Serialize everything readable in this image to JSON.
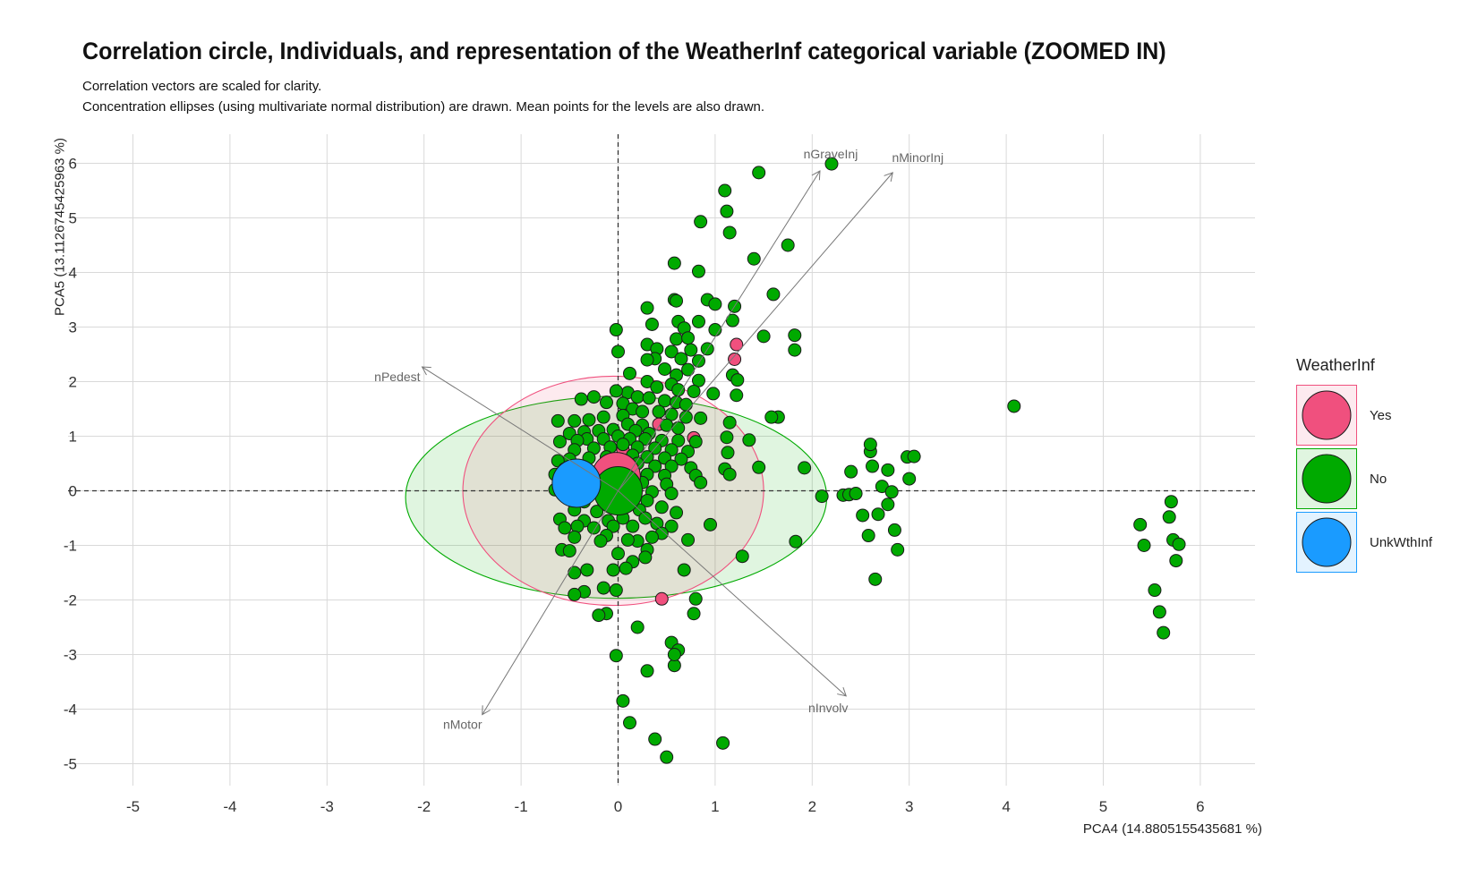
{
  "title": "Correlation circle, Individuals, and representation of the WeatherInf categorical variable (ZOOMED IN)",
  "subtitle_lines": [
    "Correlation vectors are scaled for clarity.",
    "Concentration ellipses (using multivariate normal distribution) are drawn. Mean points for the levels are also drawn."
  ],
  "chart_data": {
    "type": "scatter",
    "xlabel": "PCA4 (14.8805155435681 %)",
    "ylabel": "PCA5 (13.1126745425963 %)",
    "xlim": [
      -5.5,
      6.6
    ],
    "ylim": [
      -5.5,
      6.6
    ],
    "x_ticks": [
      -5,
      -4,
      -3,
      -2,
      -1,
      0,
      1,
      2,
      3,
      4,
      5,
      6
    ],
    "y_ticks": [
      -5,
      -4,
      -3,
      -2,
      -1,
      0,
      1,
      2,
      3,
      4,
      5,
      6
    ],
    "grid": true,
    "reference_lines": [
      "x = 0 (dashed)",
      "y = 0 (dashed)"
    ],
    "legend": {
      "title": "WeatherInf",
      "placement": "right",
      "entries": [
        {
          "label": "Yes",
          "color": "#f0507e"
        },
        {
          "label": "No",
          "color": "#00aa00"
        },
        {
          "label": "UnkWthInf",
          "color": "#1a9bff"
        }
      ]
    },
    "vectors": [
      {
        "label": "nGraveInj",
        "x": 2.08,
        "y": 5.86
      },
      {
        "label": "nMinorInj",
        "x": 2.83,
        "y": 5.83
      },
      {
        "label": "nPedest",
        "x": -2.02,
        "y": 2.27
      },
      {
        "label": "nInvolv",
        "x": 2.35,
        "y": -3.76
      },
      {
        "label": "nMotor",
        "x": -1.4,
        "y": -4.1
      }
    ],
    "ellipses": [
      {
        "level": "Yes",
        "cx": -0.05,
        "cy": 0.0,
        "rx": 1.55,
        "ry": 2.1,
        "color": "#f0507e"
      },
      {
        "level": "No",
        "cx": -0.02,
        "cy": -0.12,
        "rx": 2.17,
        "ry": 1.85,
        "color": "#00aa00"
      }
    ],
    "mean_points": [
      {
        "level": "Yes",
        "x": -0.02,
        "y": 0.26
      },
      {
        "level": "No",
        "x": 0.0,
        "y": 0.0
      },
      {
        "level": "UnkWthInf",
        "x": -0.43,
        "y": 0.14
      }
    ],
    "series": [
      {
        "name": "Yes",
        "color": "#f0507e",
        "points": [
          [
            1.22,
            2.68
          ],
          [
            1.2,
            2.41
          ],
          [
            0.42,
            1.22
          ],
          [
            0.78,
            0.97
          ],
          [
            0.45,
            -1.98
          ],
          [
            0.05,
            0.75
          ]
        ]
      },
      {
        "name": "No",
        "color": "#00aa00",
        "points": [
          [
            1.45,
            5.83
          ],
          [
            2.2,
            5.99
          ],
          [
            1.1,
            5.5
          ],
          [
            1.12,
            5.12
          ],
          [
            1.15,
            4.73
          ],
          [
            0.85,
            4.93
          ],
          [
            1.75,
            4.5
          ],
          [
            1.4,
            4.25
          ],
          [
            0.58,
            4.17
          ],
          [
            0.83,
            4.02
          ],
          [
            1.6,
            3.6
          ],
          [
            0.58,
            3.5
          ],
          [
            0.6,
            3.48
          ],
          [
            0.92,
            3.5
          ],
          [
            1.0,
            3.42
          ],
          [
            1.2,
            3.38
          ],
          [
            0.3,
            3.35
          ],
          [
            0.62,
            3.1
          ],
          [
            0.83,
            3.1
          ],
          [
            1.18,
            3.12
          ],
          [
            1.0,
            2.95
          ],
          [
            -0.02,
            2.95
          ],
          [
            0.68,
            2.98
          ],
          [
            1.82,
            2.85
          ],
          [
            1.5,
            2.83
          ],
          [
            0.6,
            2.78
          ],
          [
            0.72,
            2.8
          ],
          [
            0.3,
            2.68
          ],
          [
            0.4,
            2.6
          ],
          [
            0.55,
            2.55
          ],
          [
            0.75,
            2.58
          ],
          [
            0.92,
            2.6
          ],
          [
            1.82,
            2.58
          ],
          [
            0.0,
            2.55
          ],
          [
            0.38,
            2.42
          ],
          [
            0.65,
            2.42
          ],
          [
            0.3,
            2.4
          ],
          [
            0.83,
            2.38
          ],
          [
            0.12,
            2.15
          ],
          [
            0.48,
            2.23
          ],
          [
            0.72,
            2.22
          ],
          [
            0.6,
            2.12
          ],
          [
            1.18,
            2.12
          ],
          [
            1.23,
            2.03
          ],
          [
            0.83,
            2.02
          ],
          [
            0.3,
            2.0
          ],
          [
            0.4,
            1.9
          ],
          [
            0.55,
            1.95
          ],
          [
            0.62,
            1.85
          ],
          [
            0.78,
            1.82
          ],
          [
            0.98,
            1.78
          ],
          [
            1.22,
            1.75
          ],
          [
            0.1,
            1.8
          ],
          [
            -0.02,
            1.83
          ],
          [
            0.2,
            1.72
          ],
          [
            0.32,
            1.7
          ],
          [
            0.48,
            1.65
          ],
          [
            0.6,
            1.62
          ],
          [
            0.7,
            1.58
          ],
          [
            -0.12,
            1.62
          ],
          [
            -0.38,
            1.68
          ],
          [
            -0.25,
            1.72
          ],
          [
            0.05,
            1.6
          ],
          [
            0.15,
            1.5
          ],
          [
            0.25,
            1.45
          ],
          [
            0.42,
            1.45
          ],
          [
            0.55,
            1.4
          ],
          [
            0.7,
            1.35
          ],
          [
            0.85,
            1.33
          ],
          [
            1.65,
            1.35
          ],
          [
            0.05,
            1.38
          ],
          [
            -0.15,
            1.35
          ],
          [
            -0.3,
            1.3
          ],
          [
            -0.45,
            1.28
          ],
          [
            -0.62,
            1.28
          ],
          [
            0.1,
            1.22
          ],
          [
            0.25,
            1.2
          ],
          [
            0.5,
            1.2
          ],
          [
            0.62,
            1.15
          ],
          [
            0.18,
            1.1
          ],
          [
            0.32,
            1.05
          ],
          [
            1.15,
            1.25
          ],
          [
            -0.05,
            1.12
          ],
          [
            -0.2,
            1.1
          ],
          [
            -0.35,
            1.08
          ],
          [
            -0.5,
            1.05
          ],
          [
            0.0,
            1.0
          ],
          [
            0.12,
            0.95
          ],
          [
            0.28,
            0.95
          ],
          [
            0.45,
            0.92
          ],
          [
            0.62,
            0.92
          ],
          [
            0.8,
            0.9
          ],
          [
            -0.15,
            0.95
          ],
          [
            -0.32,
            0.95
          ],
          [
            -0.42,
            0.92
          ],
          [
            -0.6,
            0.9
          ],
          [
            1.12,
            0.98
          ],
          [
            1.35,
            0.93
          ],
          [
            1.13,
            0.7
          ],
          [
            0.05,
            0.85
          ],
          [
            0.2,
            0.8
          ],
          [
            0.38,
            0.78
          ],
          [
            0.55,
            0.75
          ],
          [
            0.72,
            0.72
          ],
          [
            -0.08,
            0.8
          ],
          [
            -0.25,
            0.78
          ],
          [
            -0.45,
            0.75
          ],
          [
            0.15,
            0.65
          ],
          [
            0.3,
            0.62
          ],
          [
            0.48,
            0.6
          ],
          [
            0.65,
            0.58
          ],
          [
            -0.12,
            0.62
          ],
          [
            -0.3,
            0.6
          ],
          [
            -0.5,
            0.58
          ],
          [
            -0.62,
            0.55
          ],
          [
            0.0,
            0.5
          ],
          [
            0.2,
            0.5
          ],
          [
            0.38,
            0.45
          ],
          [
            0.55,
            0.45
          ],
          [
            0.75,
            0.42
          ],
          [
            1.1,
            0.4
          ],
          [
            1.45,
            0.43
          ],
          [
            -0.15,
            0.45
          ],
          [
            -0.35,
            0.42
          ],
          [
            -0.55,
            0.4
          ],
          [
            -0.65,
            0.3
          ],
          [
            0.1,
            0.32
          ],
          [
            0.3,
            0.3
          ],
          [
            0.48,
            0.28
          ],
          [
            0.8,
            0.28
          ],
          [
            1.15,
            0.3
          ],
          [
            -0.2,
            0.28
          ],
          [
            -0.42,
            0.25
          ],
          [
            0.05,
            0.15
          ],
          [
            0.25,
            0.15
          ],
          [
            0.5,
            0.12
          ],
          [
            0.85,
            0.15
          ],
          [
            -0.1,
            0.12
          ],
          [
            -0.32,
            0.1
          ],
          [
            -0.55,
            0.12
          ],
          [
            0.15,
            0.0
          ],
          [
            0.35,
            -0.02
          ],
          [
            0.55,
            -0.05
          ],
          [
            -0.05,
            -0.02
          ],
          [
            -0.28,
            -0.05
          ],
          [
            -0.48,
            -0.02
          ],
          [
            -0.65,
            0.02
          ],
          [
            0.1,
            -0.15
          ],
          [
            0.3,
            -0.18
          ],
          [
            -0.15,
            -0.2
          ],
          [
            -0.35,
            -0.2
          ],
          [
            0.0,
            -0.32
          ],
          [
            0.22,
            -0.35
          ],
          [
            0.45,
            -0.3
          ],
          [
            0.6,
            -0.4
          ],
          [
            -0.22,
            -0.38
          ],
          [
            -0.45,
            -0.35
          ],
          [
            0.05,
            -0.5
          ],
          [
            0.28,
            -0.5
          ],
          [
            0.4,
            -0.6
          ],
          [
            -0.1,
            -0.55
          ],
          [
            -0.35,
            -0.55
          ],
          [
            -0.6,
            -0.52
          ],
          [
            0.15,
            -0.65
          ],
          [
            0.55,
            -0.65
          ],
          [
            0.95,
            -0.62
          ],
          [
            -0.05,
            -0.65
          ],
          [
            -0.25,
            -0.68
          ],
          [
            -0.42,
            -0.65
          ],
          [
            -0.55,
            -0.68
          ],
          [
            0.45,
            -0.78
          ],
          [
            0.72,
            -0.9
          ],
          [
            -0.12,
            -0.82
          ],
          [
            0.2,
            -0.92
          ],
          [
            0.1,
            -0.9
          ],
          [
            0.35,
            -0.85
          ],
          [
            -0.45,
            -0.85
          ],
          [
            -0.18,
            -0.92
          ],
          [
            -0.58,
            -1.08
          ],
          [
            -0.5,
            -1.1
          ],
          [
            0.3,
            -1.08
          ],
          [
            0.0,
            -1.15
          ],
          [
            0.28,
            -1.22
          ],
          [
            0.15,
            -1.3
          ],
          [
            -0.05,
            -1.45
          ],
          [
            -0.32,
            -1.45
          ],
          [
            -0.45,
            -1.5
          ],
          [
            0.08,
            -1.42
          ],
          [
            0.68,
            -1.45
          ],
          [
            -0.15,
            -1.78
          ],
          [
            -0.35,
            -1.85
          ],
          [
            -0.45,
            -1.9
          ],
          [
            -0.02,
            -1.82
          ],
          [
            0.8,
            -1.98
          ],
          [
            0.78,
            -2.25
          ],
          [
            -0.12,
            -2.25
          ],
          [
            -0.2,
            -2.28
          ],
          [
            0.2,
            -2.5
          ],
          [
            0.55,
            -2.78
          ],
          [
            0.62,
            -2.92
          ],
          [
            -0.02,
            -3.02
          ],
          [
            0.3,
            -3.3
          ],
          [
            0.58,
            -3.2
          ],
          [
            0.58,
            -3.0
          ],
          [
            0.05,
            -3.85
          ],
          [
            0.12,
            -4.25
          ],
          [
            0.38,
            -4.55
          ],
          [
            0.5,
            -4.88
          ],
          [
            1.08,
            -4.62
          ],
          [
            1.28,
            -1.2
          ],
          [
            1.83,
            -0.93
          ],
          [
            2.1,
            -0.1
          ],
          [
            2.32,
            -0.08
          ],
          [
            2.38,
            -0.07
          ],
          [
            2.45,
            -0.05
          ],
          [
            2.52,
            -0.45
          ],
          [
            2.58,
            -0.82
          ],
          [
            2.68,
            -0.43
          ],
          [
            2.78,
            -0.25
          ],
          [
            2.85,
            -0.72
          ],
          [
            2.88,
            -1.08
          ],
          [
            2.72,
            0.08
          ],
          [
            2.82,
            -0.02
          ],
          [
            2.65,
            -1.62
          ],
          [
            2.4,
            0.35
          ],
          [
            2.62,
            0.45
          ],
          [
            2.78,
            0.38
          ],
          [
            3.0,
            0.22
          ],
          [
            2.6,
            0.72
          ],
          [
            2.6,
            0.85
          ],
          [
            2.98,
            0.62
          ],
          [
            3.05,
            0.63
          ],
          [
            4.08,
            1.55
          ],
          [
            5.7,
            -0.2
          ],
          [
            5.68,
            -0.48
          ],
          [
            5.38,
            -0.62
          ],
          [
            5.42,
            -1.0
          ],
          [
            5.72,
            -0.9
          ],
          [
            5.78,
            -0.98
          ],
          [
            5.75,
            -1.28
          ],
          [
            5.53,
            -1.82
          ],
          [
            5.58,
            -2.22
          ],
          [
            5.62,
            -2.6
          ],
          [
            1.58,
            1.35
          ],
          [
            1.92,
            0.42
          ],
          [
            0.35,
            3.05
          ]
        ]
      }
    ]
  }
}
